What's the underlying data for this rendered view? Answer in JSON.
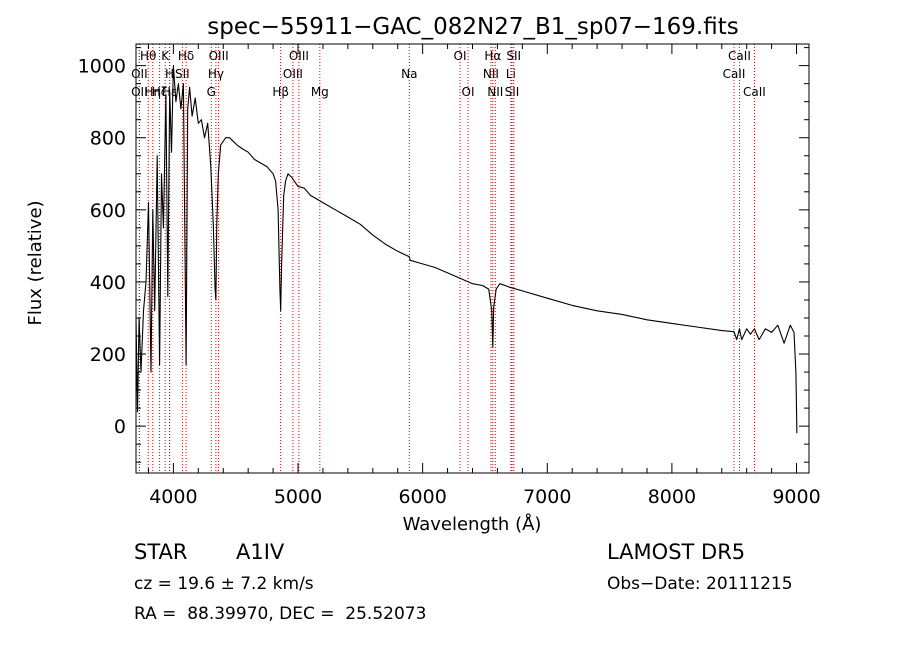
{
  "chart_data": {
    "type": "line",
    "title": "spec−55911−GAC_082N27_B1_sp07−169.fits",
    "xlabel": "Wavelength (Å)",
    "ylabel": "Flux (relative)",
    "xlim": [
      3700,
      9100
    ],
    "ylim": [
      -130,
      1060
    ],
    "x_ticks": [
      4000,
      5000,
      6000,
      7000,
      8000,
      9000
    ],
    "y_ticks": [
      0,
      200,
      400,
      600,
      800,
      1000
    ],
    "grid": false,
    "line_color": "#000000",
    "marker_color": "#cc0000",
    "series": [
      {
        "x": [
          3700,
          3712,
          3725,
          3740,
          3760,
          3780,
          3800,
          3820,
          3835,
          3850,
          3870,
          3889,
          3905,
          3920,
          3940,
          3955,
          3970,
          3985,
          4000,
          4020,
          4040,
          4060,
          4080,
          4102,
          4115,
          4130,
          4150,
          4175,
          4200,
          4225,
          4250,
          4275,
          4300,
          4320,
          4335,
          4341,
          4348,
          4360,
          4380,
          4400,
          4420,
          4450,
          4480,
          4510,
          4550,
          4600,
          4650,
          4700,
          4750,
          4800,
          4820,
          4840,
          4855,
          4861,
          4868,
          4885,
          4900,
          4920,
          4950,
          5000,
          5050,
          5100,
          5150,
          5200,
          5300,
          5400,
          5500,
          5600,
          5700,
          5800,
          5893,
          5900,
          6000,
          6100,
          6200,
          6300,
          6400,
          6480,
          6530,
          6555,
          6563,
          6570,
          6590,
          6620,
          6700,
          6800,
          7000,
          7200,
          7400,
          7600,
          7800,
          8000,
          8200,
          8400,
          8498,
          8520,
          8542,
          8560,
          8600,
          8630,
          8662,
          8700,
          8750,
          8800,
          8850,
          8900,
          8950,
          8980,
          8995,
          9003
        ],
        "y": [
          300,
          40,
          300,
          150,
          320,
          400,
          620,
          150,
          600,
          320,
          750,
          170,
          700,
          550,
          920,
          360,
          930,
          760,
          1000,
          900,
          950,
          880,
          950,
          170,
          880,
          940,
          860,
          910,
          840,
          850,
          800,
          840,
          720,
          560,
          380,
          350,
          560,
          700,
          780,
          790,
          800,
          800,
          790,
          780,
          770,
          760,
          740,
          730,
          720,
          700,
          680,
          600,
          380,
          320,
          450,
          640,
          680,
          700,
          690,
          665,
          660,
          640,
          630,
          620,
          600,
          580,
          560,
          530,
          505,
          485,
          470,
          460,
          450,
          440,
          425,
          410,
          395,
          390,
          380,
          320,
          220,
          330,
          380,
          395,
          385,
          375,
          355,
          335,
          320,
          310,
          295,
          285,
          275,
          265,
          262,
          240,
          270,
          240,
          270,
          255,
          270,
          240,
          270,
          260,
          280,
          230,
          280,
          260,
          150,
          -20
        ]
      }
    ],
    "line_markers": [
      {
        "label": "Hθ",
        "x": 3798,
        "row": 1
      },
      {
        "label": "OII",
        "x": 3727,
        "row": 2
      },
      {
        "label": "OII",
        "x": 3727,
        "row": 3
      },
      {
        "label": "Hη",
        "x": 3835,
        "row": 3
      },
      {
        "label": "Hζ",
        "x": 3889,
        "row": 3
      },
      {
        "label": "K",
        "x": 3934,
        "row": 1
      },
      {
        "label": "H",
        "x": 3969,
        "row": 2
      },
      {
        "label": "Hε",
        "x": 3970,
        "row": 3
      },
      {
        "label": "Hδ",
        "x": 4102,
        "row": 1
      },
      {
        "label": "SII",
        "x": 4072,
        "row": 2
      },
      {
        "label": "OIII",
        "x": 4363,
        "row": 1
      },
      {
        "label": "Hγ",
        "x": 4341,
        "row": 2
      },
      {
        "label": "G",
        "x": 4304,
        "row": 3
      },
      {
        "label": "Hβ",
        "x": 4861,
        "row": 3
      },
      {
        "label": "OIII",
        "x": 4959,
        "row": 2
      },
      {
        "label": "OIII",
        "x": 5007,
        "row": 1
      },
      {
        "label": "Mg",
        "x": 5175,
        "row": 3
      },
      {
        "label": "Na",
        "x": 5893,
        "row": 2
      },
      {
        "label": "OI",
        "x": 6300,
        "row": 1
      },
      {
        "label": "OI",
        "x": 6364,
        "row": 3
      },
      {
        "label": "NII",
        "x": 6548,
        "row": 2
      },
      {
        "label": "Hα",
        "x": 6563,
        "row": 1
      },
      {
        "label": "NII",
        "x": 6583,
        "row": 3
      },
      {
        "label": "Li",
        "x": 6708,
        "row": 2
      },
      {
        "label": "SII",
        "x": 6717,
        "row": 3
      },
      {
        "label": "SII",
        "x": 6731,
        "row": 1
      },
      {
        "label": "CaII",
        "x": 8498,
        "row": 2
      },
      {
        "label": "CaII",
        "x": 8542,
        "row": 1
      },
      {
        "label": "CaII",
        "x": 8662,
        "row": 3
      }
    ]
  },
  "info": {
    "class_label": "STAR",
    "subclass": "A1IV",
    "cz": "cz = 19.6 ± 7.2 km/s",
    "radec": "RA =  88.39970, DEC =  25.52073",
    "survey": "LAMOST DR5",
    "obs_date": "Obs−Date: 20111215"
  }
}
